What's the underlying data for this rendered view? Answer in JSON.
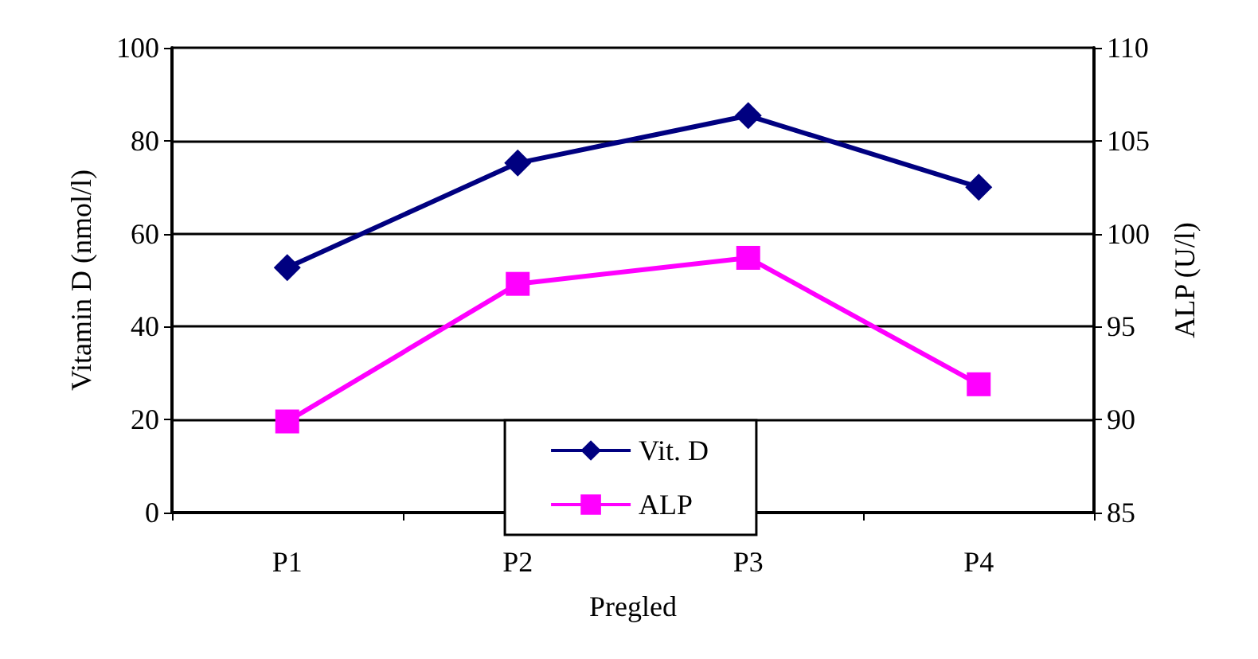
{
  "chart_data": {
    "type": "line",
    "xlabel": "Pregled",
    "ylabel": "Vitamin D (nmol/l)",
    "y2label": "ALP (U/l)",
    "categories": [
      "P1",
      "P2",
      "P3",
      "P4"
    ],
    "series": [
      {
        "name": "Vit. D",
        "color": "#000080",
        "marker": "diamond",
        "values": [
          52.7,
          75.2,
          85.4,
          70.0
        ]
      },
      {
        "name": "ALP",
        "color": "#ff00ff",
        "marker": "square",
        "axis": "y2",
        "values": [
          89.9,
          97.3,
          98.7,
          91.9
        ]
      }
    ],
    "ylim": [
      0,
      100
    ],
    "yticks": [
      0,
      20,
      40,
      60,
      80,
      100
    ],
    "y2lim": [
      85,
      110
    ],
    "y2ticks": [
      85,
      90,
      95,
      100,
      105,
      110
    ],
    "grid": "y",
    "legend": "bottom"
  }
}
